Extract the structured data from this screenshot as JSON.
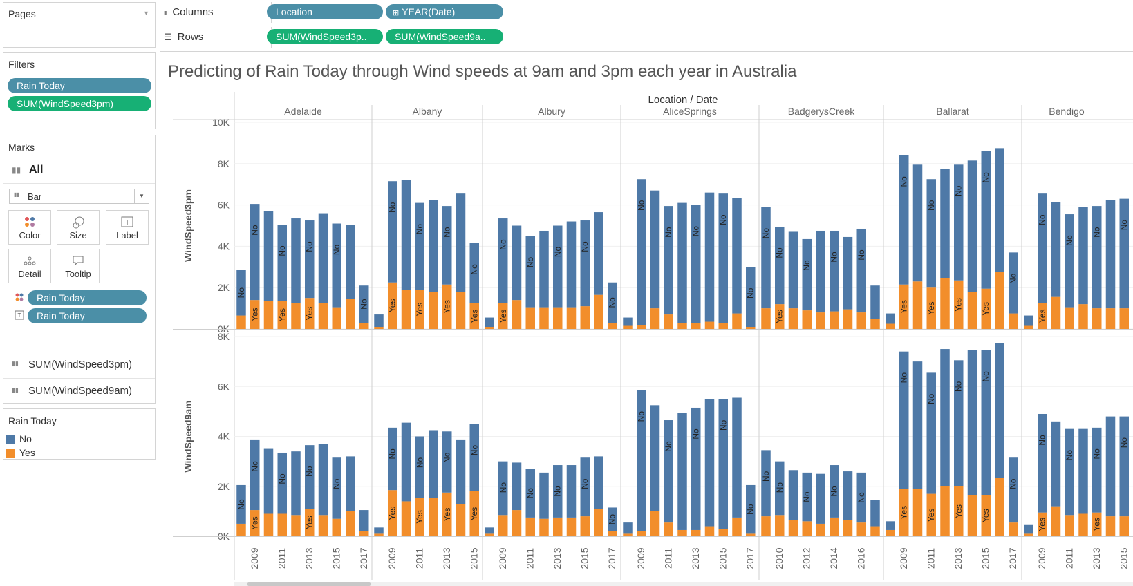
{
  "pages": {
    "title": "Pages"
  },
  "filters": {
    "title": "Filters",
    "items": [
      "Rain Today",
      "SUM(WindSpeed3pm)"
    ]
  },
  "marks": {
    "title": "Marks",
    "all_label": "All",
    "mark_type": "Bar",
    "buttons": {
      "color": "Color",
      "size": "Size",
      "label": "Label",
      "detail": "Detail",
      "tooltip": "Tooltip"
    },
    "encodings": [
      "Rain Today",
      "Rain Today"
    ],
    "measures": [
      "SUM(WindSpeed3pm)",
      "SUM(WindSpeed9am)"
    ]
  },
  "legend": {
    "title": "Rain Today",
    "items": [
      {
        "label": "No",
        "color": "#4e79a7"
      },
      {
        "label": "Yes",
        "color": "#f28e2b"
      }
    ]
  },
  "shelves": {
    "columns_label": "Columns",
    "rows_label": "Rows",
    "columns_pills": [
      "Location",
      "YEAR(Date)"
    ],
    "rows_pills": [
      "SUM(WindSpeed3p..",
      "SUM(WindSpeed9a.."
    ]
  },
  "view": {
    "title": "Predicting of Rain Today through Wind speeds at 9am and 3pm each year in Australia"
  },
  "chart_data": {
    "type": "bar",
    "stacked": true,
    "header": "Location / Date",
    "legend": [
      "No",
      "Yes"
    ],
    "colors": {
      "No": "#4e79a7",
      "Yes": "#f28e2b"
    },
    "panels": [
      {
        "ylabel": "WindSpeed3pm",
        "ylim": [
          0,
          10000
        ],
        "ticks": [
          "0K",
          "2K",
          "4K",
          "6K",
          "8K",
          "10K"
        ],
        "tickValues": [
          0,
          2000,
          4000,
          6000,
          8000,
          10000
        ]
      },
      {
        "ylabel": "WindSpeed9am",
        "ylim": [
          0,
          8000
        ],
        "ticks": [
          "0K",
          "2K",
          "4K",
          "6K",
          "8K"
        ],
        "tickValues": [
          0,
          2000,
          4000,
          6000,
          8000
        ]
      }
    ],
    "locations": [
      {
        "name": "Adelaide",
        "years": [
          2008,
          2009,
          2010,
          2011,
          2012,
          2013,
          2014,
          2015,
          2016,
          2017
        ],
        "year_labels": [
          "2009",
          "2011",
          "2013",
          "2015",
          "2017"
        ],
        "ws3_yes": [
          650,
          1400,
          1350,
          1350,
          1250,
          1500,
          1250,
          1050,
          1450,
          300
        ],
        "ws3_no": [
          2200,
          4650,
          4350,
          3700,
          4100,
          3750,
          4350,
          4050,
          3600,
          1800
        ],
        "ws9_yes": [
          500,
          1050,
          900,
          900,
          850,
          1100,
          850,
          700,
          1000,
          200
        ],
        "ws9_no": [
          1550,
          2800,
          2600,
          2450,
          2550,
          2550,
          2850,
          2450,
          2200,
          850
        ]
      },
      {
        "name": "Albany",
        "years": [
          2008,
          2009,
          2010,
          2011,
          2012,
          2013,
          2014,
          2015
        ],
        "year_labels": [
          "2009",
          "2011",
          "2013",
          "2015"
        ],
        "ws3_yes": [
          100,
          2250,
          1900,
          1900,
          1800,
          2150,
          1800,
          1250
        ],
        "ws3_no": [
          600,
          4900,
          5300,
          4200,
          4450,
          3800,
          4750,
          2900
        ],
        "ws9_yes": [
          100,
          1850,
          1400,
          1550,
          1550,
          1750,
          1300,
          1800
        ],
        "ws9_no": [
          250,
          2500,
          3150,
          2450,
          2700,
          2450,
          2550,
          2700
        ]
      },
      {
        "name": "Albury",
        "years": [
          2008,
          2009,
          2010,
          2011,
          2012,
          2013,
          2014,
          2015,
          2016,
          2017
        ],
        "year_labels": [
          "2009",
          "2011",
          "2013",
          "2015",
          "2017"
        ],
        "ws3_yes": [
          100,
          1250,
          1400,
          1050,
          1050,
          1050,
          1050,
          1100,
          1650,
          300
        ],
        "ws3_no": [
          450,
          4100,
          3600,
          3450,
          3700,
          3950,
          4150,
          4150,
          4000,
          1950
        ],
        "ws9_yes": [
          100,
          850,
          1050,
          750,
          700,
          750,
          750,
          800,
          1100,
          200
        ],
        "ws9_no": [
          250,
          2150,
          1900,
          1950,
          1850,
          2100,
          2100,
          2350,
          2100,
          950
        ]
      },
      {
        "name": "AliceSprings",
        "years": [
          2008,
          2009,
          2010,
          2011,
          2012,
          2013,
          2014,
          2015,
          2016,
          2017
        ],
        "year_labels": [
          "2009",
          "2011",
          "2013",
          "2015",
          "2017"
        ],
        "ws3_yes": [
          150,
          200,
          1000,
          700,
          300,
          300,
          350,
          300,
          750,
          100
        ],
        "ws3_no": [
          400,
          7050,
          5700,
          5250,
          5800,
          5700,
          6250,
          6250,
          5600,
          2900
        ],
        "ws9_yes": [
          100,
          200,
          1000,
          550,
          250,
          250,
          400,
          300,
          750,
          100
        ],
        "ws9_no": [
          450,
          5650,
          4250,
          4100,
          4700,
          4900,
          5100,
          5200,
          4800,
          1950
        ]
      },
      {
        "name": "BadgerysCreek",
        "years": [
          2009,
          2010,
          2011,
          2012,
          2013,
          2014,
          2015,
          2016,
          2017
        ],
        "year_labels": [
          "2010",
          "2012",
          "2014",
          "2016"
        ],
        "ws3_yes": [
          1000,
          1200,
          1000,
          900,
          800,
          850,
          950,
          800,
          500
        ],
        "ws3_no": [
          4900,
          3750,
          3700,
          3450,
          3950,
          3900,
          3500,
          4050,
          1600
        ],
        "ws9_yes": [
          800,
          850,
          650,
          600,
          500,
          750,
          650,
          550,
          400
        ],
        "ws9_no": [
          2650,
          2150,
          2000,
          1950,
          2000,
          2100,
          1950,
          2000,
          1050
        ]
      },
      {
        "name": "Ballarat",
        "years": [
          2008,
          2009,
          2010,
          2011,
          2012,
          2013,
          2014,
          2015,
          2016,
          2017
        ],
        "year_labels": [
          "2009",
          "2011",
          "2013",
          "2015",
          "2017"
        ],
        "ws3_yes": [
          250,
          2150,
          2300,
          2000,
          2450,
          2350,
          1800,
          1950,
          2750,
          750
        ],
        "ws3_no": [
          500,
          6250,
          5650,
          5250,
          5300,
          5600,
          6350,
          6650,
          6000,
          2950
        ],
        "ws9_yes": [
          250,
          1900,
          1900,
          1700,
          2000,
          2000,
          1650,
          1650,
          2350,
          550
        ],
        "ws9_no": [
          350,
          5500,
          5100,
          4850,
          5500,
          5050,
          5800,
          5800,
          5400,
          2600
        ]
      },
      {
        "name": "Bendigo",
        "years": [
          2008,
          2009,
          2010,
          2011,
          2012,
          2013,
          2014,
          2015
        ],
        "year_labels": [
          "2009",
          "2011",
          "2013",
          "2015"
        ],
        "ws3_yes": [
          150,
          1250,
          1550,
          1050,
          1200,
          1000,
          1000,
          1000
        ],
        "ws3_no": [
          500,
          5300,
          4600,
          4500,
          4700,
          4950,
          5250,
          5300
        ],
        "ws9_yes": [
          100,
          950,
          1200,
          850,
          900,
          950,
          800,
          800
        ],
        "ws9_no": [
          350,
          3950,
          3400,
          3450,
          3400,
          3400,
          4000,
          4000
        ]
      }
    ]
  }
}
